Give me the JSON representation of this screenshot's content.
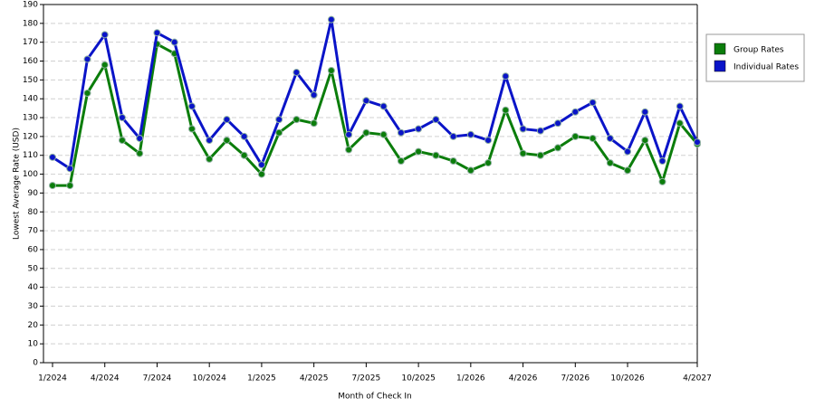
{
  "chart_data": {
    "type": "line",
    "x_label": "Month of Check In",
    "y_label": "Lowest Average Rate (USD)",
    "categories": [
      "1/2024",
      null,
      null,
      "4/2024",
      null,
      null,
      "7/2024",
      null,
      null,
      "10/2024",
      null,
      null,
      "1/2025",
      null,
      null,
      "4/2025",
      null,
      null,
      "7/2025",
      null,
      null,
      "10/2025",
      null,
      null,
      "1/2026",
      null,
      null,
      "4/2026",
      null,
      null,
      "7/2026",
      null,
      null,
      "10/2026",
      null,
      null,
      null,
      "4/2027"
    ],
    "series": [
      {
        "name": "Group Rates",
        "color": "#0b7d0b",
        "values": [
          94,
          94,
          143,
          158,
          118,
          111,
          169,
          164,
          124,
          108,
          118,
          110,
          100,
          122,
          129,
          127,
          155,
          113,
          122,
          121,
          107,
          112,
          110,
          107,
          102,
          106,
          134,
          111,
          110,
          114,
          120,
          119,
          106,
          102,
          118,
          96,
          127,
          116
        ]
      },
      {
        "name": "Individual Rates",
        "color": "#0a14c8",
        "values": [
          109,
          103,
          161,
          174,
          130,
          119,
          175,
          170,
          136,
          118,
          129,
          120,
          105,
          129,
          154,
          142,
          182,
          121,
          139,
          136,
          122,
          124,
          129,
          120,
          121,
          118,
          152,
          124,
          123,
          127,
          133,
          138,
          119,
          112,
          133,
          107,
          136,
          117
        ]
      }
    ],
    "ylim": [
      0,
      190
    ],
    "yticks": [
      0,
      10,
      20,
      30,
      40,
      50,
      60,
      70,
      80,
      90,
      100,
      110,
      120,
      130,
      140,
      150,
      160,
      170,
      180,
      190
    ],
    "grid": true,
    "legend": "right"
  }
}
